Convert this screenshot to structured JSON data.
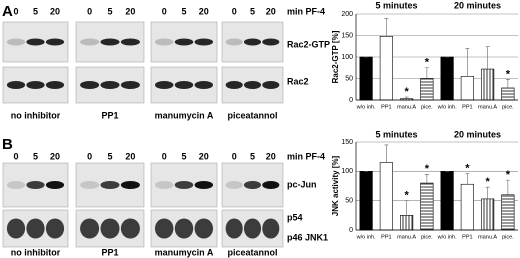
{
  "panels": [
    {
      "letter": "A",
      "lanes": [
        "0",
        "5",
        "20"
      ],
      "time_unit": "min PF-4",
      "rows": [
        "Rac2-GTP",
        "Rac2"
      ],
      "groups": [
        "no inhibitor",
        "PP1",
        "manumycin A",
        "piceatannol"
      ]
    },
    {
      "letter": "B",
      "lanes": [
        "0",
        "5",
        "20"
      ],
      "time_unit": "min PF-4",
      "rows": [
        "pc-Jun",
        "p54",
        "p46 JNK1"
      ],
      "groups": [
        "no inhibitor",
        "PP1",
        "manumycin A",
        "piceatannol"
      ]
    }
  ],
  "chart_data": [
    {
      "type": "bar",
      "y_label": "Rac2-GTP [%]",
      "group_titles": [
        "5 minutes",
        "20 minutes"
      ],
      "categories": [
        "w/o inh.",
        "PP1",
        "manu.A",
        "pice.",
        "w/o inh.",
        "PP1",
        "manu.A",
        "pice."
      ],
      "values": [
        100,
        148,
        3,
        50,
        100,
        55,
        72,
        28
      ],
      "errors": [
        0,
        42,
        4,
        25,
        0,
        65,
        52,
        20
      ],
      "significance": [
        null,
        null,
        "*",
        "*",
        null,
        null,
        null,
        "*"
      ],
      "fills": [
        "solid",
        "open",
        "vertical",
        "horizontal",
        "solid",
        "open",
        "vertical",
        "horizontal"
      ],
      "ylim": [
        0,
        200
      ],
      "yticks": [
        0,
        50,
        100,
        150,
        200
      ],
      "grid": true
    },
    {
      "type": "bar",
      "y_label": "JNK activity [%]",
      "group_titles": [
        "5 minutes",
        "20 minutes"
      ],
      "categories": [
        "w/o inh.",
        "PP1",
        "manu.A",
        "pice.",
        "w/o inh.",
        "PP1",
        "manu.A",
        "pice."
      ],
      "values": [
        100,
        115,
        25,
        80,
        100,
        78,
        53,
        60
      ],
      "errors": [
        0,
        30,
        25,
        15,
        0,
        18,
        20,
        25
      ],
      "significance": [
        null,
        null,
        "*",
        "*",
        null,
        "*",
        "*",
        "*"
      ],
      "fills": [
        "solid",
        "open",
        "vertical",
        "horizontal",
        "solid",
        "open",
        "vertical",
        "horizontal"
      ],
      "ylim": [
        0,
        150
      ],
      "yticks": [
        0,
        50,
        100,
        150
      ],
      "grid": true
    }
  ]
}
